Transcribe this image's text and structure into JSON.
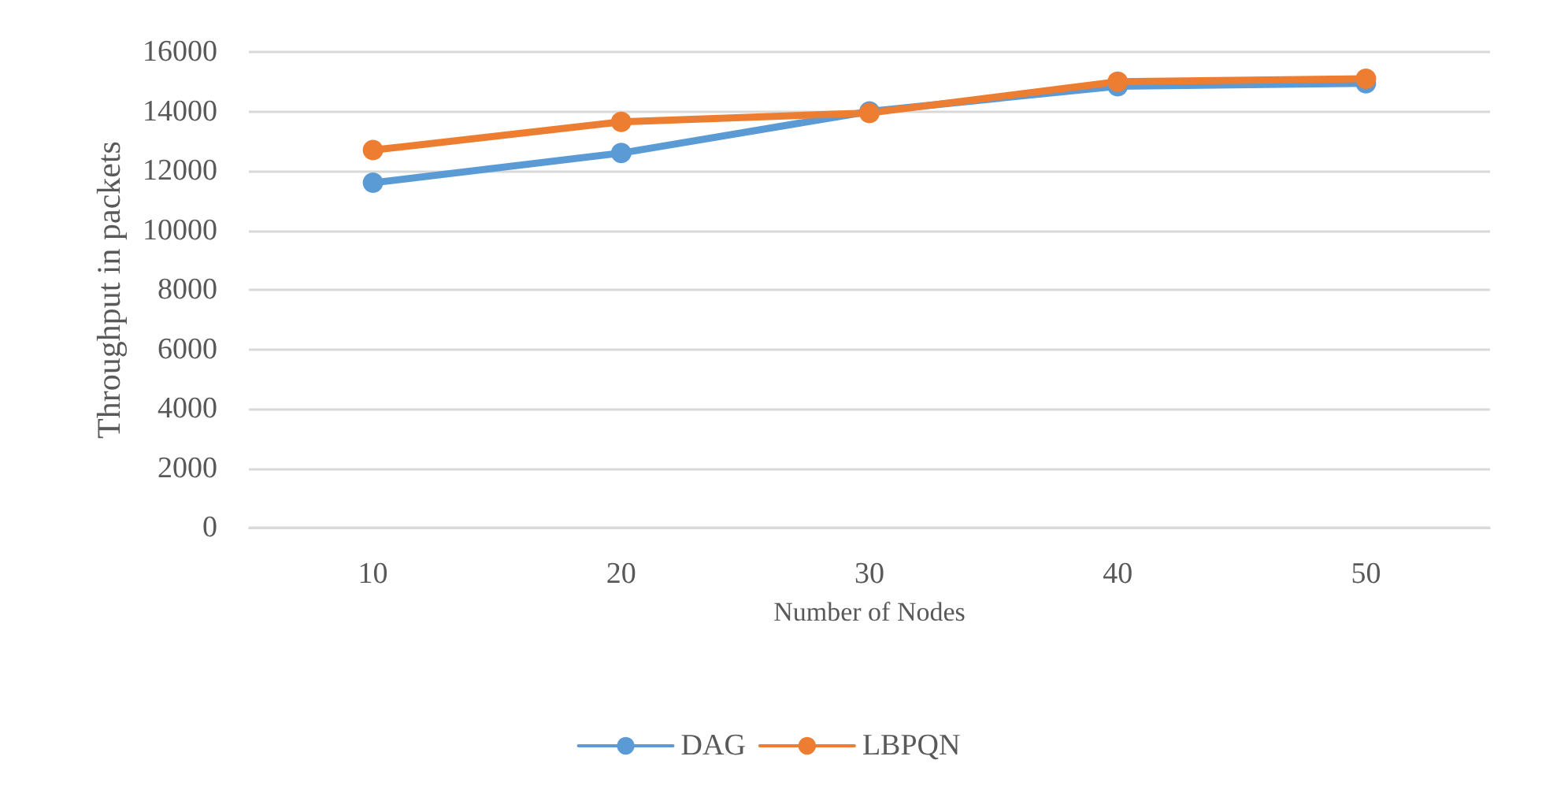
{
  "chart_data": {
    "type": "line",
    "xlabel": "Number of Nodes",
    "ylabel": "Throughput in packets",
    "categories": [
      "10",
      "20",
      "30",
      "40",
      "50"
    ],
    "series": [
      {
        "name": "DAG",
        "color": "#5b9bd5",
        "values": [
          11600,
          12600,
          14000,
          14850,
          14950
        ]
      },
      {
        "name": "LBPQN",
        "color": "#ed7d31",
        "values": [
          12700,
          13650,
          13950,
          15000,
          15100
        ]
      }
    ],
    "ylim": [
      0,
      16000
    ],
    "yticks": [
      0,
      2000,
      4000,
      6000,
      8000,
      10000,
      12000,
      14000,
      16000
    ],
    "grid": "y",
    "legend": "bottom",
    "marker": "circle",
    "line_style": "solid"
  }
}
